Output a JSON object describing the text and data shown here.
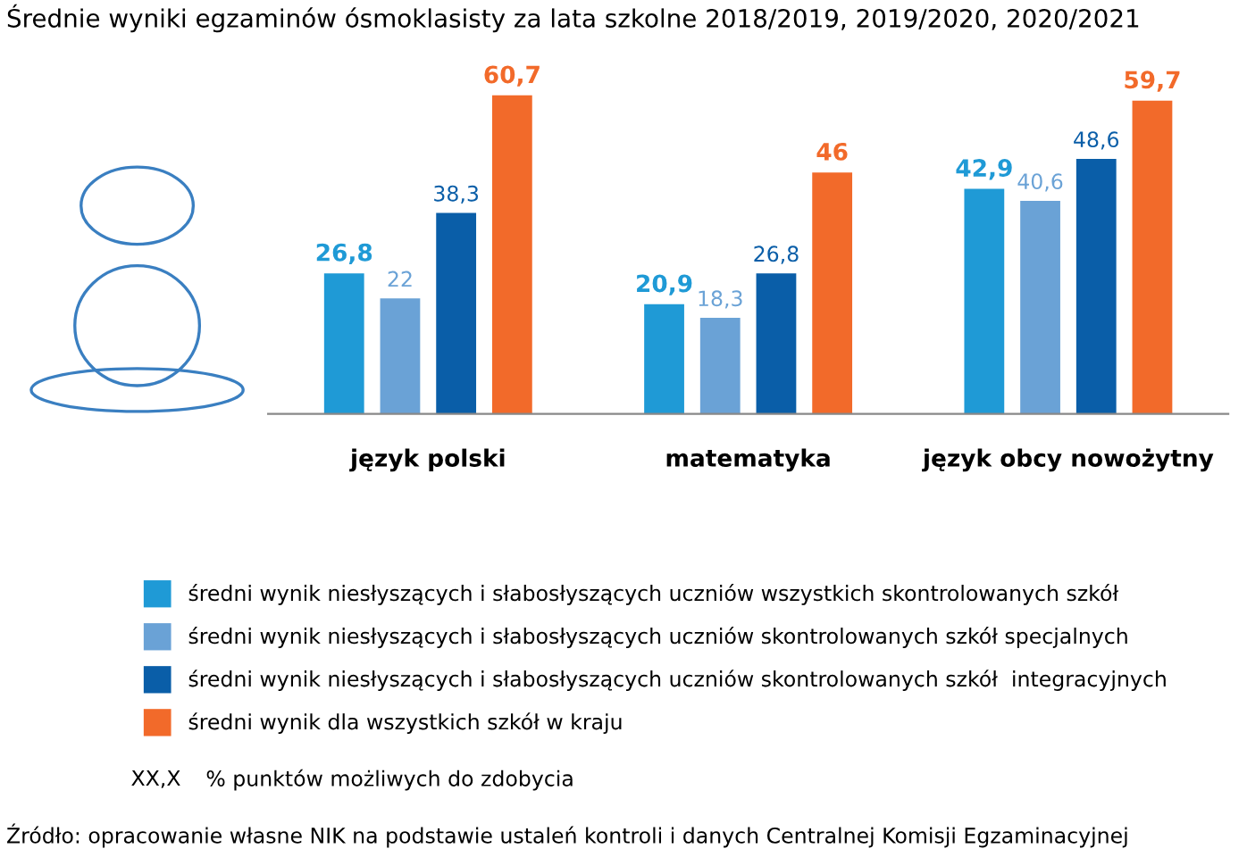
{
  "chart_data": {
    "type": "bar",
    "title": "Średnie wyniki egzaminów ósmoklasisty za lata szkolne 2018/2019, 2019/2020, 2020/2021",
    "categories": [
      "język polski",
      "matematyka",
      "język obcy nowożytny"
    ],
    "series": [
      {
        "name": "średni wynik niesłyszących i słabosłyszących uczniów wszystkich skontrolowanych szkół",
        "color": "#1f9ad6",
        "values": [
          26.8,
          20.9,
          42.9
        ],
        "value_labels": [
          "26,8",
          "20,9",
          "42,9"
        ]
      },
      {
        "name": "średni wynik niesłyszących i słabosłyszących uczniów skontrolowanych szkół specjalnych",
        "color": "#6aa2d6",
        "values": [
          22,
          18.3,
          40.6
        ],
        "value_labels": [
          "22",
          "18,3",
          "40,6"
        ]
      },
      {
        "name": "średni wynik niesłyszących i słabosłyszących uczniów skontrolowanych szkół  integracyjnych",
        "color": "#0a5ea8",
        "values": [
          38.3,
          26.8,
          48.6
        ],
        "value_labels": [
          "38,3",
          "26,8",
          "48,6"
        ]
      },
      {
        "name": "średni wynik dla wszystkich szkół w kraju",
        "color": "#f26a2a",
        "values": [
          60.7,
          46,
          59.7
        ],
        "value_labels": [
          "60,7",
          "46",
          "59,7"
        ]
      }
    ],
    "legend": "bottom",
    "grid": false,
    "annotations": [
      "XX,X",
      "% punktów możliwych do zdobycia",
      "Źródło: opracowanie własne NIK na podstawie ustaleń kontroli i danych Centralnej Komisji Egzaminacyjnej"
    ]
  }
}
